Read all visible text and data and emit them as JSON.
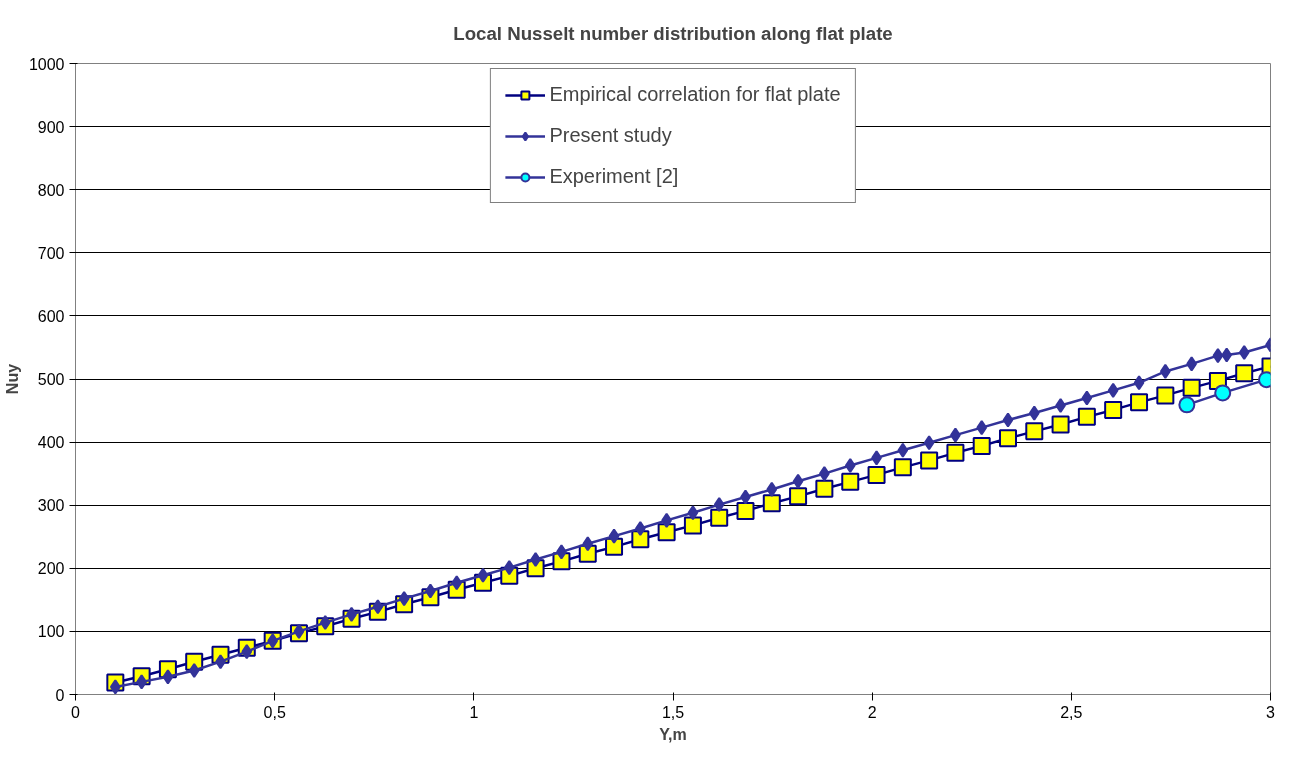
{
  "chart_data": {
    "type": "line",
    "title": "Local Nusselt number distribution along flat plate",
    "xlabel": "Y,m",
    "ylabel": "Nuy",
    "xlim": [
      0,
      3
    ],
    "ylim": [
      0,
      1000
    ],
    "xticks": [
      0,
      {
        "value": 0.5,
        "label": "0,5"
      },
      1,
      {
        "value": 1.5,
        "label": "1,5"
      },
      2,
      {
        "value": 2.5,
        "label": "2,5"
      },
      3
    ],
    "yticks": [
      0,
      100,
      200,
      300,
      400,
      500,
      600,
      700,
      800,
      900,
      1000
    ],
    "grid": "y",
    "legend": "top",
    "x": [
      0.1,
      0.166,
      0.232,
      0.298,
      0.364,
      0.43,
      0.495,
      0.561,
      0.627,
      0.693,
      0.759,
      0.825,
      0.891,
      0.957,
      1.023,
      1.089,
      1.155,
      1.22,
      1.286,
      1.352,
      1.418,
      1.484,
      1.55,
      1.616,
      1.682,
      1.748,
      1.814,
      1.88,
      1.945,
      2.011,
      2.077,
      2.143,
      2.209,
      2.275,
      2.341,
      2.407,
      2.473,
      2.539,
      2.605,
      2.67,
      2.736,
      2.802,
      2.868,
      2.934,
      3.0
    ],
    "series": [
      {
        "name": "Empirical correlation for flat plate",
        "color": "#ffff00",
        "marker": "square",
        "values": [
          19,
          29,
          40,
          52,
          63,
          74,
          85,
          97,
          108,
          120,
          131,
          143,
          154,
          166,
          177,
          188,
          200,
          211,
          223,
          234,
          246,
          257,
          268,
          280,
          291,
          303,
          314,
          326,
          337,
          348,
          360,
          371,
          383,
          394,
          406,
          417,
          428,
          440,
          451,
          463,
          474,
          486,
          497,
          509,
          520
        ]
      },
      {
        "name": "Present study",
        "color": "#333399",
        "marker": "diamond",
        "x": [
          0.1,
          0.166,
          0.232,
          0.298,
          0.364,
          0.43,
          0.495,
          0.561,
          0.627,
          0.693,
          0.759,
          0.825,
          0.891,
          0.957,
          1.023,
          1.089,
          1.155,
          1.22,
          1.286,
          1.352,
          1.418,
          1.484,
          1.55,
          1.616,
          1.682,
          1.748,
          1.814,
          1.88,
          1.945,
          2.011,
          2.077,
          2.143,
          2.209,
          2.275,
          2.341,
          2.407,
          2.473,
          2.539,
          2.605,
          2.67,
          2.736,
          2.802,
          2.868,
          2.89,
          2.934,
          3.0
        ],
        "values": [
          12,
          20,
          28,
          38,
          52,
          68,
          85,
          100,
          114,
          127,
          139,
          152,
          164,
          177,
          189,
          201,
          214,
          226,
          239,
          251,
          263,
          276,
          288,
          301,
          313,
          325,
          338,
          350,
          363,
          375,
          387,
          399,
          411,
          423,
          435,
          446,
          458,
          470,
          482,
          494,
          512,
          524,
          537,
          538,
          542,
          554
        ]
      },
      {
        "name": "Experiment [2]",
        "color": "#00ffff",
        "marker": "circle",
        "x": [
          2.79,
          2.88,
          2.99
        ],
        "values": [
          459,
          478,
          499
        ]
      }
    ]
  }
}
